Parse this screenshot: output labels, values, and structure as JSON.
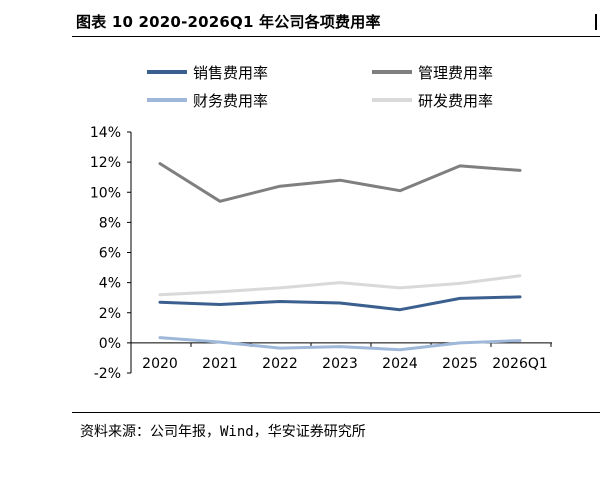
{
  "figure": {
    "title": "图表 10 2020-2026Q1 年公司各项费用率",
    "source": "资料来源：公司年报，Wind，华安证券研究所"
  },
  "chart_data": {
    "type": "line",
    "categories": [
      "2020",
      "2021",
      "2022",
      "2023",
      "2024",
      "2025",
      "2026Q1"
    ],
    "series": [
      {
        "name": "销售费用率",
        "color": "#3b5f8f",
        "values": [
          2.7,
          2.55,
          2.75,
          2.65,
          2.2,
          2.95,
          3.05
        ]
      },
      {
        "name": "管理费用率",
        "color": "#7f7f7f",
        "values": [
          11.9,
          9.4,
          10.4,
          10.8,
          10.1,
          11.75,
          11.45
        ]
      },
      {
        "name": "财务费用率",
        "color": "#9fb8da",
        "values": [
          0.35,
          0.05,
          -0.35,
          -0.25,
          -0.45,
          0.0,
          0.15
        ]
      },
      {
        "name": "研发费用率",
        "color": "#d9d9d9",
        "values": [
          3.2,
          3.4,
          3.65,
          4.0,
          3.65,
          3.95,
          4.45
        ]
      }
    ],
    "yticks": [
      "14%",
      "12%",
      "10%",
      "8%",
      "6%",
      "4%",
      "2%",
      "0%",
      "-2%"
    ],
    "ylim": [
      -2,
      14
    ],
    "grid": false,
    "legend": "top, two columns"
  }
}
